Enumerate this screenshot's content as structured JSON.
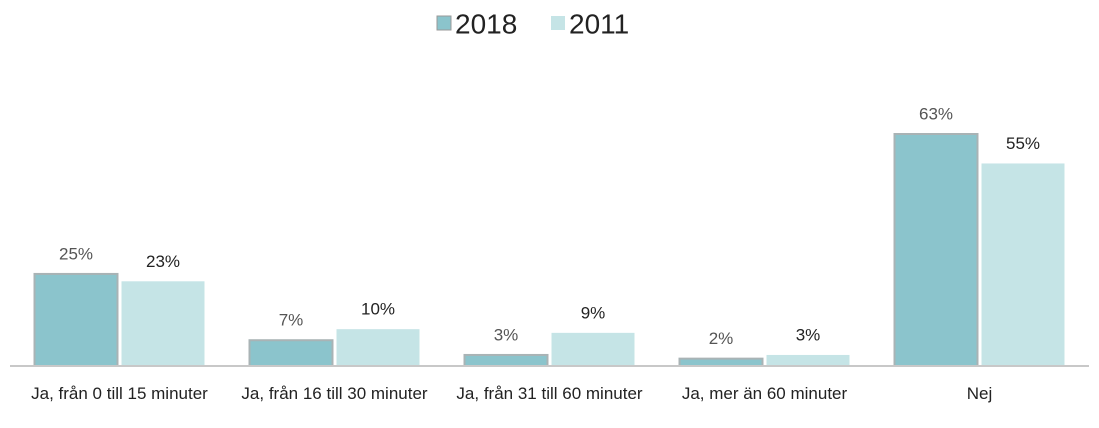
{
  "chart_data": {
    "type": "bar",
    "categories": [
      "Ja, från 0 till 15 minuter",
      "Ja, från 16 till 30 minuter",
      "Ja, från 31 till 60 minuter",
      "Ja, mer än 60 minuter",
      "Nej"
    ],
    "series": [
      {
        "name": "2018",
        "color": "#8bc4cc",
        "values": [
          25,
          7,
          3,
          2,
          63
        ],
        "value_labels": [
          "25%",
          "7%",
          "3%",
          "2%",
          "63%"
        ]
      },
      {
        "name": "2011",
        "color": "#c5e4e6",
        "values": [
          23,
          10,
          9,
          3,
          55
        ],
        "value_labels": [
          "23%",
          "10%",
          "9%",
          "3%",
          "55%"
        ]
      }
    ],
    "legend": "top"
  }
}
